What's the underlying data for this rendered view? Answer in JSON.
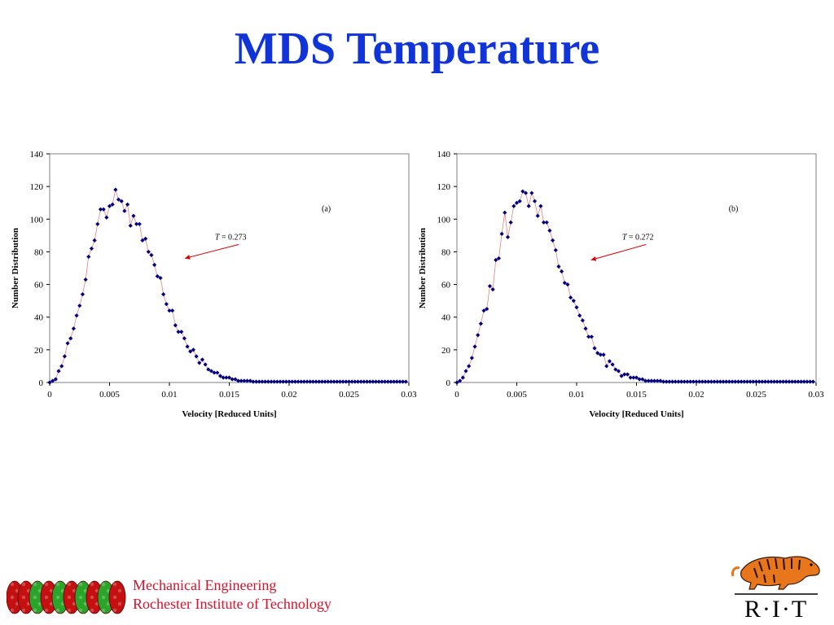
{
  "slide": {
    "title": "MDS Temperature"
  },
  "footer": {
    "line1": "Mechanical Engineering",
    "line2": "Rochester Institute of Technology",
    "logo_text": "R·I·T",
    "colors": {
      "title": "#1034d8",
      "footer": "#d8102a",
      "series": "#000080",
      "fit_line": "#e88080",
      "arrow": "#dd0000"
    }
  },
  "chart_data": [
    {
      "type": "scatter",
      "panel_label": "(a)",
      "annotation": {
        "symbol": "T",
        "text": " = 0.273",
        "arrow_to": [
          0.0113,
          76
        ]
      },
      "xlabel": "Velocity [Reduced Units]",
      "ylabel": "Number Distribution",
      "xlim": [
        0,
        0.03
      ],
      "ylim": [
        0,
        140
      ],
      "xticks": [
        "0",
        "0.005",
        "0.01",
        "0.015",
        "0.02",
        "0.025",
        "0.03"
      ],
      "yticks": [
        "0",
        "20",
        "40",
        "60",
        "80",
        "100",
        "120",
        "140"
      ],
      "grid": false,
      "x_step": 0.00025,
      "y": [
        0,
        1,
        2,
        7,
        10,
        16,
        24,
        27,
        33,
        41,
        47,
        54,
        63,
        77,
        82,
        87,
        97,
        106,
        106,
        101,
        108,
        109,
        118,
        112,
        111,
        105,
        109,
        96,
        102,
        97,
        97,
        87,
        88,
        80,
        78,
        72,
        65,
        64,
        54,
        48,
        44,
        44,
        35,
        31,
        31,
        27,
        22,
        19,
        20,
        16,
        12,
        14,
        11,
        8,
        7,
        6,
        6,
        4,
        3,
        3,
        3,
        2,
        2,
        1,
        1,
        1,
        1,
        1,
        0.5,
        0.5,
        0.5,
        0.5,
        0.5,
        0.5,
        0.5,
        0.5,
        0.5,
        0.5,
        0.5,
        0.5,
        0.5,
        0.5,
        0.5,
        0.5,
        0.5,
        0.5,
        0.5,
        0.5,
        0.5,
        0.5,
        0.5,
        0.5,
        0.5,
        0.5,
        0.5,
        0.5,
        0.5,
        0.5,
        0.5,
        0.5,
        0.5,
        0.5,
        0.5,
        0.5,
        0.5,
        0.5,
        0.5,
        0.5,
        0.5,
        0.5,
        0.5,
        0.5,
        0.5,
        0.5,
        0.5,
        0.5,
        0.5,
        0.5,
        0.5,
        0.5
      ]
    },
    {
      "type": "scatter",
      "panel_label": "(b)",
      "annotation": {
        "symbol": "T",
        "text": " = 0.272",
        "arrow_to": [
          0.0112,
          75
        ]
      },
      "xlabel": "Velocity [Reduced Units]",
      "ylabel": "Number Distribution",
      "xlim": [
        0,
        0.03
      ],
      "ylim": [
        0,
        140
      ],
      "xticks": [
        "0",
        "0.005",
        "0.01",
        "0.015",
        "0.02",
        "0.025",
        "0.03"
      ],
      "yticks": [
        "0",
        "20",
        "40",
        "60",
        "80",
        "100",
        "120",
        "140"
      ],
      "grid": false,
      "x_step": 0.00025,
      "y": [
        0,
        1,
        3,
        7,
        10,
        15,
        22,
        29,
        36,
        44,
        45,
        59,
        57,
        75,
        76,
        91,
        104,
        89,
        98,
        108,
        110,
        111,
        117,
        116,
        108,
        116,
        111,
        102,
        108,
        98,
        98,
        93,
        87,
        81,
        71,
        68,
        61,
        60,
        52,
        50,
        46,
        41,
        38,
        33,
        28,
        28,
        21,
        18,
        17,
        17,
        10,
        13,
        11,
        8,
        7,
        4,
        5,
        5,
        3,
        3,
        3,
        2,
        2,
        1,
        1,
        1,
        1,
        1,
        1,
        0.5,
        0.5,
        0.5,
        0.5,
        0.5,
        0.5,
        0.5,
        0.5,
        0.5,
        0.5,
        0.5,
        0.5,
        0.5,
        0.5,
        0.5,
        0.5,
        0.5,
        0.5,
        0.5,
        0.5,
        0.5,
        0.5,
        0.5,
        0.5,
        0.5,
        0.5,
        0.5,
        0.5,
        0.5,
        0.5,
        0.5,
        0.5,
        0.5,
        0.5,
        0.5,
        0.5,
        0.5,
        0.5,
        0.5,
        0.5,
        0.5,
        0.5,
        0.5,
        0.5,
        0.5,
        0.5,
        0.5,
        0.5,
        0.5,
        0.5,
        0.5
      ]
    }
  ]
}
